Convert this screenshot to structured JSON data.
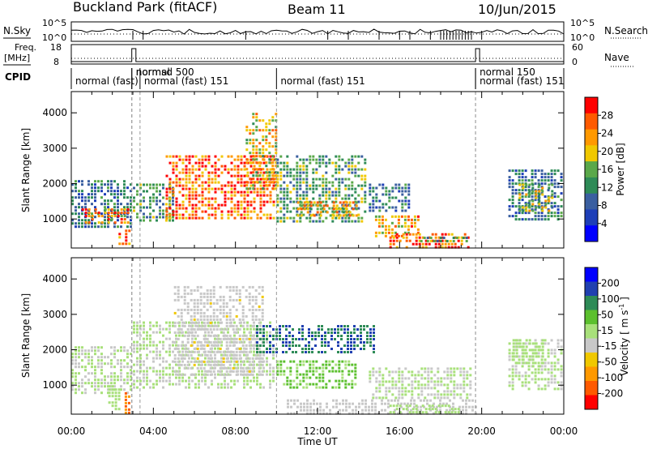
{
  "header": {
    "title_left": "Buckland Park (fitACF)",
    "title_center": "Beam 11",
    "title_right": "10/Jun/2015"
  },
  "strip_nsky": {
    "left_label": "N.Sky",
    "right_label": "N.Search",
    "left_ticks": [
      "10^5",
      "10^0"
    ],
    "right_ticks": [
      "10^5",
      "10^0"
    ]
  },
  "strip_freq": {
    "left_label_line1": "Freq.",
    "left_label_line2": "[MHz]",
    "right_label": "Nave",
    "left_ticks": [
      "18",
      "8"
    ],
    "right_ticks": [
      "60",
      "0"
    ]
  },
  "strip_cpid": {
    "label": "CPID",
    "modes": [
      {
        "text": "normal (fast)",
        "start": 0.0
      },
      {
        "text": "normal",
        "start": 2.95
      },
      {
        "text": "normsd 500",
        "start": 2.95
      },
      {
        "text": "normal (fast) 151",
        "start": 3.35
      },
      {
        "text": "normal (fast) 151",
        "start": 10.0
      },
      {
        "text": "normal 150",
        "start": 19.7
      },
      {
        "text": "normal (fast) 151",
        "start": 19.7
      }
    ]
  },
  "chart_data": [
    {
      "type": "heatmap",
      "name": "Power panel",
      "ylabel": "Slant Range [km]",
      "xlabel": "",
      "x_range_hours": [
        0,
        24
      ],
      "ylim": [
        180,
        4600
      ],
      "yticks": [
        1000,
        2000,
        3000,
        4000
      ],
      "colorbar": {
        "label": "Power [dB]",
        "ticks": [
          "4",
          "8",
          "12",
          "16",
          "20",
          "24",
          "28"
        ],
        "range": [
          0,
          32
        ],
        "colors": [
          "#0000ff",
          "#1e3fb8",
          "#3a5fa0",
          "#2e8b57",
          "#5aa84a",
          "#f0c800",
          "#ff9900",
          "#ff5a00",
          "#ff0000"
        ]
      },
      "echo_regions": [
        {
          "t0": 0.0,
          "t1": 3.0,
          "r0": 700,
          "r1": 2100,
          "level": 10
        },
        {
          "t0": 0.5,
          "t1": 2.9,
          "r0": 800,
          "r1": 1300,
          "level": 24
        },
        {
          "t0": 2.3,
          "t1": 3.0,
          "r0": 250,
          "r1": 700,
          "level": 26
        },
        {
          "t0": 3.0,
          "t1": 5.0,
          "r0": 900,
          "r1": 2000,
          "level": 13
        },
        {
          "t0": 4.6,
          "t1": 9.9,
          "r0": 1000,
          "r1": 2800,
          "level": 26
        },
        {
          "t0": 8.5,
          "t1": 10.0,
          "r0": 1800,
          "r1": 4000,
          "level": 20
        },
        {
          "t0": 10.0,
          "t1": 14.5,
          "r0": 900,
          "r1": 2800,
          "level": 14
        },
        {
          "t0": 11.0,
          "t1": 14.0,
          "r0": 1000,
          "r1": 1500,
          "level": 21
        },
        {
          "t0": 14.5,
          "t1": 16.5,
          "r0": 1200,
          "r1": 2000,
          "level": 10
        },
        {
          "t0": 14.8,
          "t1": 17.0,
          "r0": 500,
          "r1": 1100,
          "level": 22
        },
        {
          "t0": 15.5,
          "t1": 19.5,
          "r0": 180,
          "r1": 600,
          "level": 27
        },
        {
          "t0": 17.0,
          "t1": 19.8,
          "r0": 300,
          "r1": 500,
          "level": 15
        },
        {
          "t0": 21.3,
          "t1": 24.0,
          "r0": 900,
          "r1": 2400,
          "level": 10
        },
        {
          "t0": 21.8,
          "t1": 23.5,
          "r0": 1200,
          "r1": 2000,
          "level": 17
        }
      ]
    },
    {
      "type": "heatmap",
      "name": "Velocity panel",
      "ylabel": "Slant Range [km]",
      "xlabel": "Time UT",
      "x_range_hours": [
        0,
        24
      ],
      "xticks": [
        "00:00",
        "04:00",
        "08:00",
        "12:00",
        "16:00",
        "20:00",
        "00:00"
      ],
      "ylim": [
        180,
        4600
      ],
      "yticks": [
        1000,
        2000,
        3000,
        4000
      ],
      "colorbar": {
        "label": "Velocity [ m s^-1 ]",
        "ticks": [
          "200",
          "100",
          "50",
          "15",
          "-15",
          "-50",
          "-100",
          "-200"
        ],
        "range": [
          -250,
          250
        ],
        "colors": [
          "#ff0000",
          "#ff5a00",
          "#ff9900",
          "#f0c800",
          "#c8c8c8",
          "#a8e07a",
          "#5cc02e",
          "#2e8b57",
          "#2040b0",
          "#0000ff"
        ]
      },
      "echo_regions": [
        {
          "t0": 0.0,
          "t1": 3.0,
          "r0": 700,
          "r1": 2100,
          "level": 0
        },
        {
          "t0": 1.8,
          "t1": 2.4,
          "r0": 300,
          "r1": 1000,
          "level": 40
        },
        {
          "t0": 2.6,
          "t1": 2.9,
          "r0": 180,
          "r1": 800,
          "level": -160
        },
        {
          "t0": 3.0,
          "t1": 9.9,
          "r0": 900,
          "r1": 2800,
          "level": 0
        },
        {
          "t0": 5.0,
          "t1": 9.5,
          "r0": 1200,
          "r1": 3800,
          "level": -40
        },
        {
          "t0": 9.0,
          "t1": 14.8,
          "r0": 1900,
          "r1": 2700,
          "level": 150
        },
        {
          "t0": 10.0,
          "t1": 14.0,
          "r0": 900,
          "r1": 1700,
          "level": 55
        },
        {
          "t0": 10.5,
          "t1": 19.8,
          "r0": 180,
          "r1": 600,
          "level": -35
        },
        {
          "t0": 14.5,
          "t1": 19.5,
          "r0": 600,
          "r1": 1500,
          "level": 0
        },
        {
          "t0": 15.5,
          "t1": 19.0,
          "r0": 200,
          "r1": 450,
          "level": 30
        },
        {
          "t0": 21.3,
          "t1": 24.0,
          "r0": 800,
          "r1": 2300,
          "level": 0
        },
        {
          "t0": 21.5,
          "t1": 23.0,
          "r0": 1500,
          "r1": 2300,
          "level": 25
        }
      ]
    }
  ]
}
